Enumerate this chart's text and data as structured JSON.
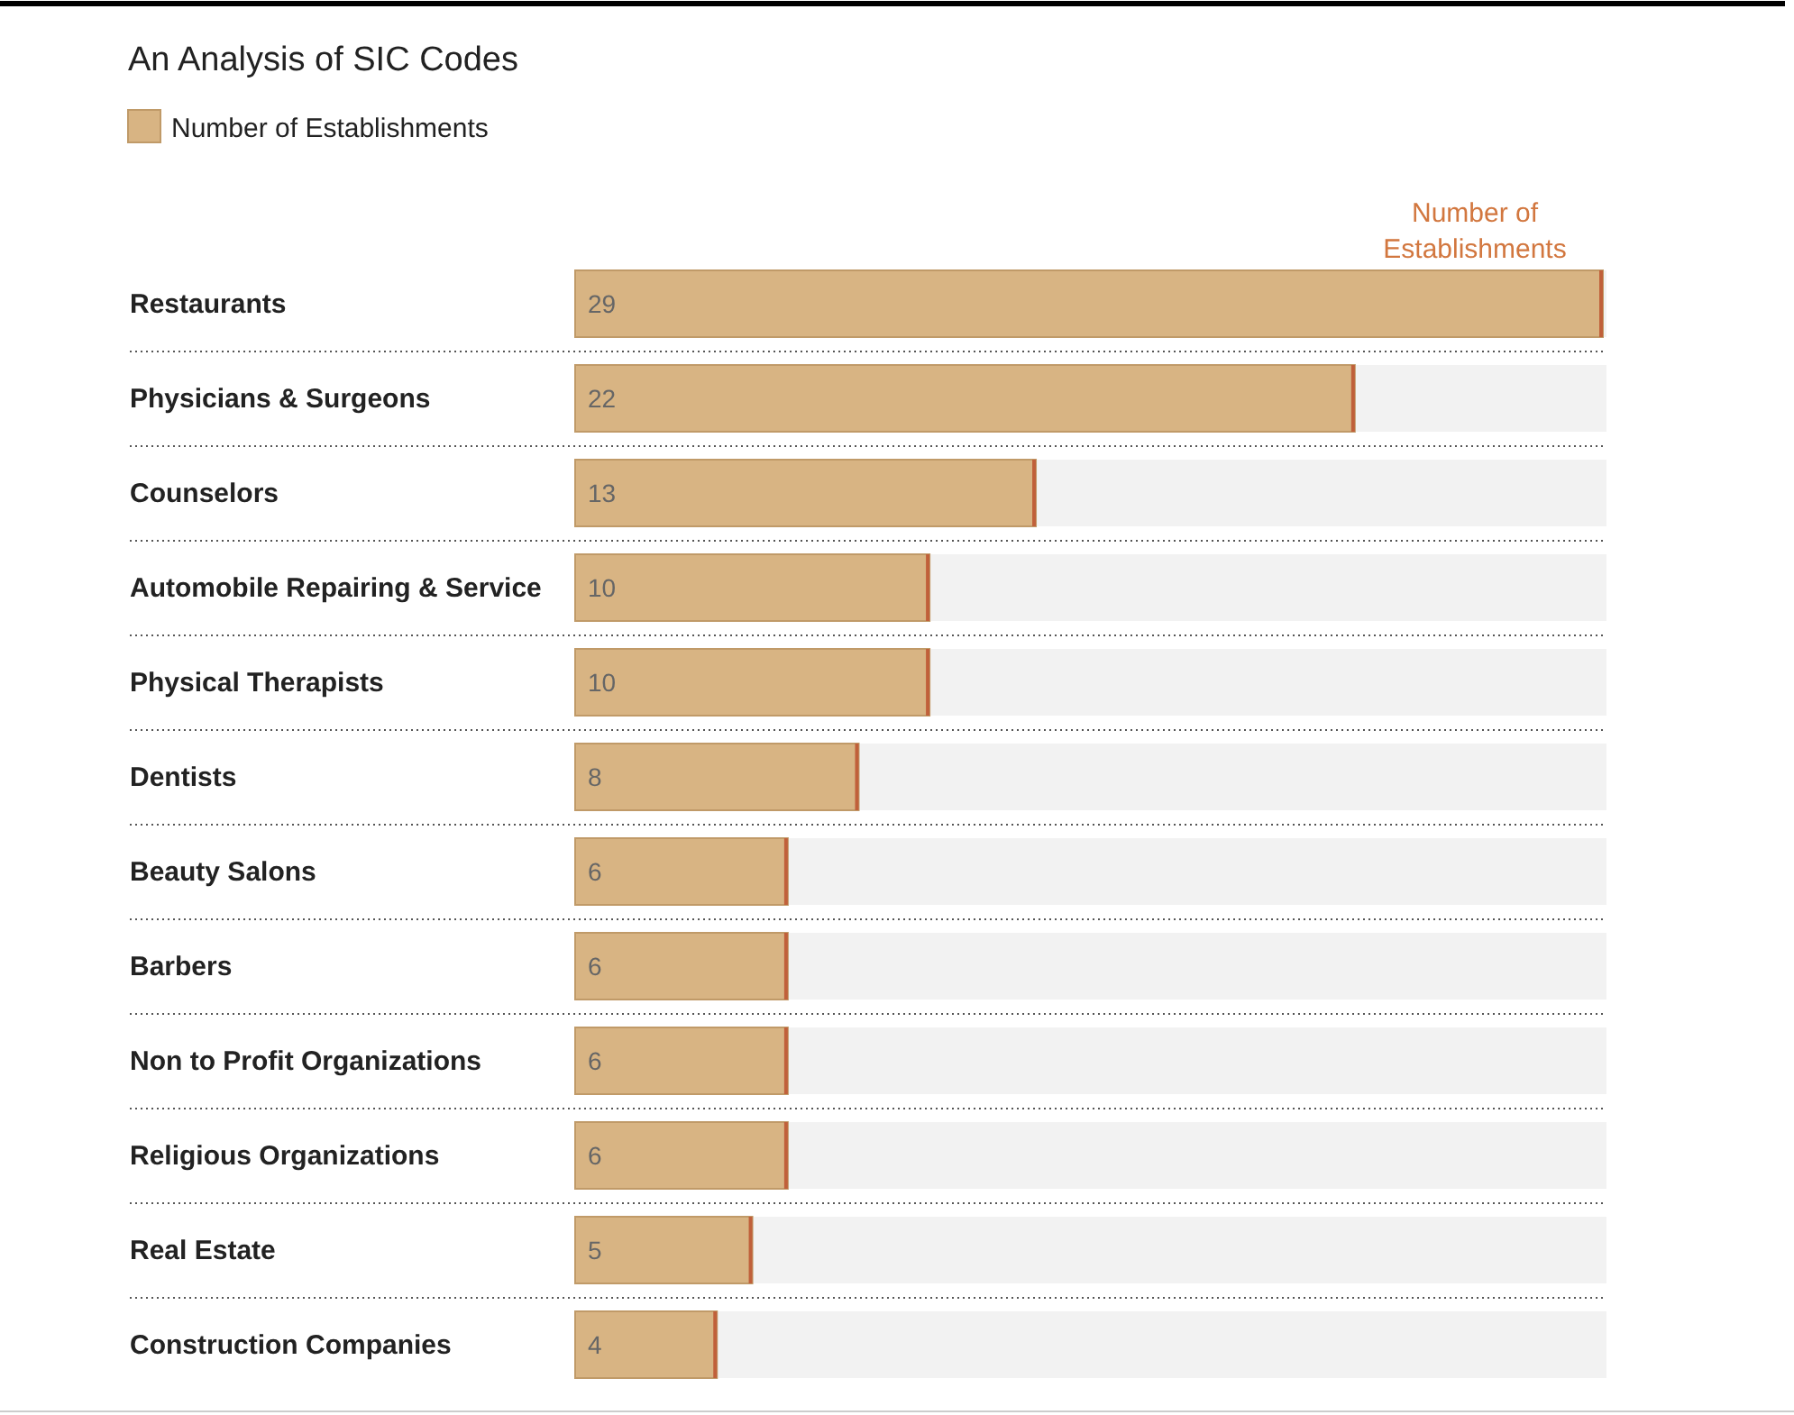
{
  "chart_data": {
    "type": "bar",
    "orientation": "horizontal",
    "title": "An Analysis of SIC Codes",
    "xlabel": "Number of Establishments",
    "categories": [
      "Restaurants",
      "Physicians & Surgeons",
      "Counselors",
      "Automobile Repairing & Service",
      "Physical Therapists",
      "Dentists",
      "Beauty Salons",
      "Barbers",
      "Non to Profit Organizations",
      "Religious Organizations",
      "Real Estate",
      "Construction Companies"
    ],
    "series": [
      {
        "name": "Number of Establishments",
        "color": "#d8b483",
        "values": [
          29,
          22,
          13,
          10,
          10,
          8,
          6,
          6,
          6,
          6,
          5,
          4
        ]
      }
    ],
    "xlim": [
      0,
      29
    ],
    "data_labels": true,
    "legend": "top left"
  }
}
